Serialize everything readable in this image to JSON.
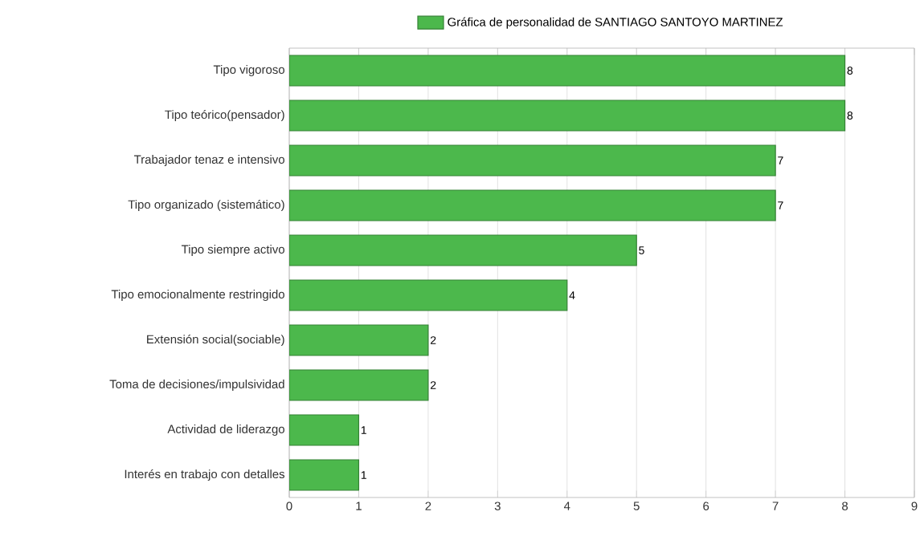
{
  "chart_data": {
    "type": "bar",
    "orientation": "horizontal",
    "categories": [
      "Tipo vigoroso",
      "Tipo teórico(pensador)",
      "Trabajador tenaz e intensivo",
      "Tipo organizado (sistemático)",
      "Tipo siempre activo",
      "Tipo emocionalmente restringido",
      "Extensión social(sociable)",
      "Toma de decisiones/impulsividad",
      "Actividad de liderazgo",
      "Interés en trabajo con detalles"
    ],
    "series": [
      {
        "name": "Gráfica de personalidad de SANTIAGO SANTOYO MARTINEZ",
        "color": "#4cb84c",
        "values": [
          8,
          8,
          7,
          7,
          5,
          4,
          2,
          2,
          1,
          1
        ]
      }
    ],
    "xlim": [
      0,
      9
    ],
    "xticks": [
      0,
      1,
      2,
      3,
      4,
      5,
      6,
      7,
      8,
      9
    ],
    "grid": "x",
    "legend": "top",
    "data_labels": true
  }
}
